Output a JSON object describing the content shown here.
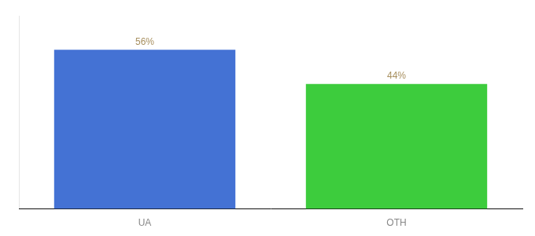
{
  "chart_data": {
    "type": "bar",
    "categories": [
      "UA",
      "OTH"
    ],
    "values": [
      56,
      44
    ],
    "value_labels": [
      "56%",
      "44%"
    ],
    "colors": [
      "#4472d4",
      "#3dcc3d"
    ],
    "ylim": [
      0,
      68
    ],
    "grid": false,
    "data_labels": true,
    "tick_labels": "x"
  }
}
